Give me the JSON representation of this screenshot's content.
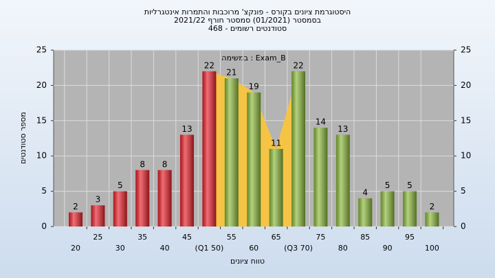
{
  "chart_data": {
    "type": "bar",
    "title": "היסטוגרמת ציונים בקורס - פונקצ' מרוכבות והתמרות אינטגרליות",
    "subtitle": "בסמסטר  (01/2021)  סמסטר חורף 2021/22",
    "subtitle2": "סטודנטים רשומים - 468",
    "annotation": "במשימה : Exam_B",
    "ylabel": "מספר סטודנטים",
    "xlabel": "טווח ציונים",
    "categories": [
      "20",
      "25",
      "30",
      "35",
      "40",
      "45",
      "(Q1 50)",
      "55",
      "60",
      "65",
      "(Q3 70)",
      "75",
      "80",
      "85",
      "90",
      "95",
      "100"
    ],
    "values": [
      2,
      3,
      5,
      8,
      8,
      13,
      22,
      21,
      19,
      11,
      22,
      14,
      13,
      4,
      5,
      5,
      2
    ],
    "colors": [
      "#e8202a",
      "#e8202a",
      "#e8202a",
      "#e8202a",
      "#e8202a",
      "#e8202a",
      "#e8202a",
      "#8ab83a",
      "#8ab83a",
      "#8ab83a",
      "#8ab83a",
      "#8ab83a",
      "#8ab83a",
      "#8ab83a",
      "#8ab83a",
      "#8ab83a",
      "#8ab83a"
    ],
    "iqr_color": "#f5c445",
    "ylim": [
      0,
      25
    ],
    "yticks": [
      0,
      5,
      10,
      15,
      20,
      25
    ],
    "grid": true
  }
}
